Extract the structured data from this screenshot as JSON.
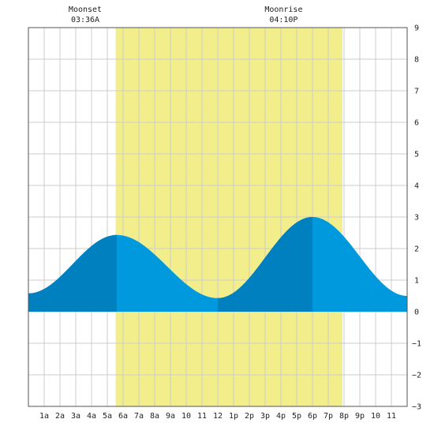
{
  "chart_data": {
    "type": "area",
    "x_ticks": [
      "1a",
      "2a",
      "3a",
      "4a",
      "5a",
      "6a",
      "7a",
      "8a",
      "9a",
      "10",
      "11",
      "12",
      "1p",
      "2p",
      "3p",
      "4p",
      "5p",
      "6p",
      "7p",
      "8p",
      "9p",
      "10",
      "11"
    ],
    "xlim": [
      0,
      24
    ],
    "ylim": [
      -3,
      9
    ],
    "y_ticks": [
      "9",
      "8",
      "7",
      "6",
      "5",
      "4",
      "3",
      "2",
      "1",
      "0",
      "−1",
      "−2",
      "−3"
    ],
    "y_tick_values": [
      9,
      8,
      7,
      6,
      5,
      4,
      3,
      2,
      1,
      0,
      -1,
      -2,
      -3
    ],
    "grid": true,
    "daylight": {
      "start_hour": 5.53,
      "end_hour": 19.9,
      "color": "#f2ee8c"
    },
    "colors": {
      "tide_dark": "#0080bf",
      "tide_light": "#0099dd",
      "grid": "#cccccc",
      "frame": "#555555"
    },
    "tide_extrema": [
      {
        "hour": 0.0,
        "height": 0.58
      },
      {
        "hour": 5.6,
        "height": 2.43
      },
      {
        "hour": 12.0,
        "height": 0.43
      },
      {
        "hour": 18.0,
        "height": 3.0
      },
      {
        "hour": 24.0,
        "height": 0.5
      }
    ],
    "shading_dark_ranges": [
      [
        0,
        5.6
      ],
      [
        12.0,
        18.0
      ]
    ],
    "annotations": [
      {
        "label": "Moonset",
        "time": "03:36A",
        "hour": 3.6
      },
      {
        "label": "Moonrise",
        "time": "04:10P",
        "hour": 16.17
      }
    ]
  }
}
